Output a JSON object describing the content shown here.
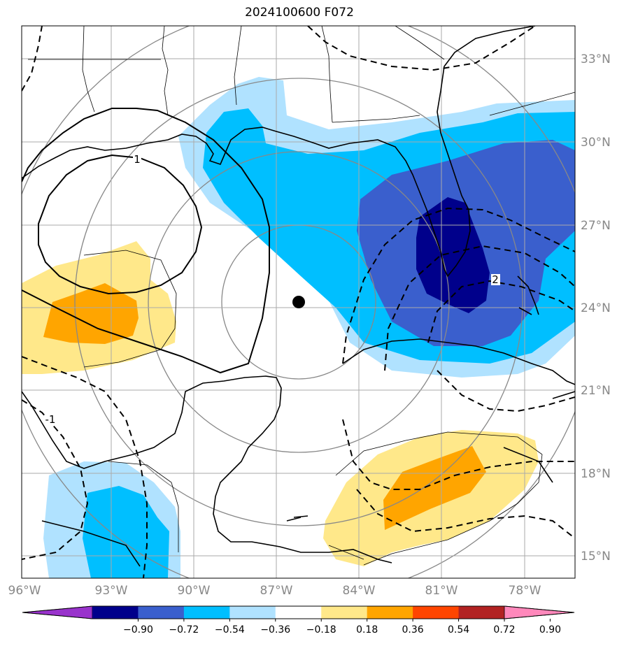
{
  "title": "2024100600 F072",
  "lon_labels": [
    "96°W",
    "93°W",
    "90°W",
    "87°W",
    "84°W",
    "81°W",
    "78°W"
  ],
  "lat_labels": [
    "33°N",
    "30°N",
    "27°N",
    "24°N",
    "21°N",
    "18°N",
    "15°N"
  ],
  "contour_labels": [
    "1",
    "2",
    "-1"
  ],
  "colorbar": {
    "ticks": [
      "−0.90",
      "−0.72",
      "−0.54",
      "−0.36",
      "−0.18",
      "0.18",
      "0.36",
      "0.54",
      "0.72",
      "0.90"
    ],
    "colors": [
      "#9933cc",
      "#00008b",
      "#3a5fcd",
      "#00bfff",
      "#b0e2ff",
      "#ffffff",
      "#ffe88a",
      "#ffa500",
      "#ff4500",
      "#b22222",
      "#ff88bb"
    ]
  },
  "center_marker": "storm-center-dot"
}
